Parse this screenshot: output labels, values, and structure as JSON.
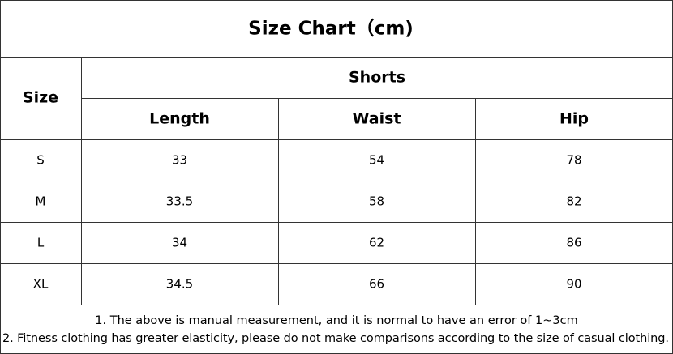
{
  "title": "Size Chart（cm)",
  "table": {
    "size_header": "Size",
    "group": "Shorts",
    "columns": [
      "Length",
      "Waist",
      "Hip"
    ],
    "rows": [
      [
        "S",
        33,
        54,
        78
      ],
      [
        "M",
        33.5,
        58,
        82
      ],
      [
        "L",
        34,
        62,
        86
      ],
      [
        "XL",
        34.5,
        66,
        90
      ]
    ]
  },
  "notes": [
    "1. The above is manual measurement, and it is normal to have an error of 1~3cm",
    "2. Fitness clothing has greater elasticity, please do not make comparisons according to the size of casual clothing."
  ]
}
